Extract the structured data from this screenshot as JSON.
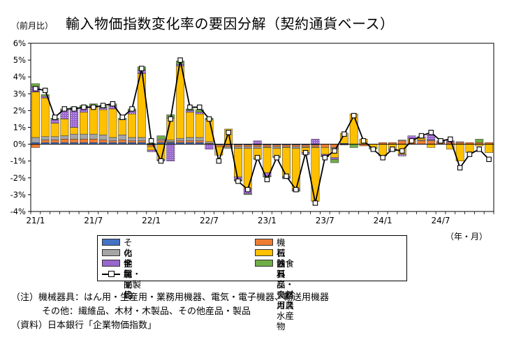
{
  "header": {
    "unit": "（前月比）",
    "title": "輸入物価指数変化率の要因分解（契約通貨ベース）"
  },
  "chart_data": {
    "type": "bar",
    "stacked": true,
    "x_axis_unit": "（年・月）",
    "ylim": [
      -4,
      6
    ],
    "yticks": [
      "-4%",
      "-3%",
      "-2%",
      "-1%",
      "0%",
      "1%",
      "2%",
      "3%",
      "4%",
      "5%",
      "6%"
    ],
    "grid": false,
    "x_tick_labels": [
      {
        "index": 0,
        "label": "21/1"
      },
      {
        "index": 6,
        "label": "21/7"
      },
      {
        "index": 12,
        "label": "22/1"
      },
      {
        "index": 18,
        "label": "22/7"
      },
      {
        "index": 24,
        "label": "23/1"
      },
      {
        "index": 30,
        "label": "23/7"
      },
      {
        "index": 36,
        "label": "24/1"
      },
      {
        "index": 42,
        "label": "24/7"
      }
    ],
    "categories": [
      "21/1",
      "21/2",
      "21/3",
      "21/4",
      "21/5",
      "21/6",
      "21/7",
      "21/8",
      "21/9",
      "21/10",
      "21/11",
      "21/12",
      "22/1",
      "22/2",
      "22/3",
      "22/4",
      "22/5",
      "22/6",
      "22/7",
      "22/8",
      "22/9",
      "22/10",
      "22/11",
      "22/12",
      "23/1",
      "23/2",
      "23/3",
      "23/4",
      "23/5",
      "23/6",
      "23/7",
      "23/8",
      "23/9",
      "23/10",
      "23/11",
      "23/12",
      "24/1",
      "24/2",
      "24/3",
      "24/4",
      "24/5",
      "24/6",
      "24/7",
      "24/8",
      "24/9",
      "24/10",
      "24/11",
      "24/12"
    ],
    "series": [
      {
        "name": "その他",
        "color": "#4472C4",
        "values": [
          0.1,
          0.1,
          0.1,
          0.1,
          0.1,
          0.1,
          0.1,
          0.1,
          0.1,
          0.1,
          0.1,
          0.1,
          -0.05,
          0.1,
          0.1,
          0.1,
          0.1,
          0.1,
          0.0,
          -0.05,
          -0.05,
          -0.05,
          -0.05,
          -0.05,
          -0.05,
          -0.05,
          -0.05,
          -0.05,
          -0.05,
          -0.05,
          0.0,
          0.0,
          0.05,
          0.0,
          0.0,
          0.0,
          0.0,
          0.0,
          0.0,
          0.0,
          0.0,
          0.0,
          0.0,
          0.0,
          0.0,
          0.0,
          0.0,
          0.0
        ]
      },
      {
        "name": "機械器具",
        "color": "#ED7D31",
        "values": [
          -0.2,
          0.15,
          0.15,
          0.2,
          0.2,
          0.2,
          0.2,
          0.15,
          0.1,
          0.15,
          0.1,
          0.1,
          -0.1,
          0.1,
          0.05,
          0.1,
          0.1,
          0.1,
          0.05,
          -0.1,
          -0.1,
          -0.1,
          -0.1,
          -0.1,
          -0.1,
          -0.1,
          -0.1,
          -0.1,
          -0.1,
          -0.1,
          -0.2,
          -0.2,
          0.0,
          0.0,
          -0.1,
          0.0,
          0.1,
          0.1,
          0.2,
          0.2,
          0.2,
          0.2,
          0.1,
          0.1,
          0.1,
          0.1,
          0.1,
          0.1
        ]
      },
      {
        "name": "化学製品",
        "color": "#A5A5A5",
        "values": [
          0.3,
          0.2,
          0.2,
          0.2,
          0.3,
          0.3,
          0.3,
          0.3,
          0.2,
          0.3,
          0.2,
          0.2,
          0.0,
          0.1,
          0.1,
          0.15,
          0.2,
          0.2,
          0.1,
          0.0,
          -0.1,
          -0.1,
          -0.1,
          -0.1,
          -0.05,
          -0.1,
          -0.05,
          -0.1,
          -0.05,
          -0.05,
          0.0,
          -0.1,
          -0.05,
          0.0,
          0.0,
          0.0,
          0.0,
          0.0,
          0.05,
          0.0,
          0.05,
          0.05,
          0.0,
          0.0,
          0.05,
          0.0,
          0.0,
          0.0
        ]
      },
      {
        "name": "石油・石炭・天然ガス",
        "color": "#FFC000",
        "values": [
          2.7,
          2.3,
          0.8,
          1.0,
          0.4,
          1.3,
          1.6,
          1.5,
          1.7,
          0.9,
          1.4,
          3.8,
          -0.2,
          -0.9,
          1.3,
          4.3,
          1.5,
          1.4,
          1.3,
          -0.5,
          0.9,
          -1.7,
          -2.4,
          -0.6,
          -1.5,
          -0.5,
          -1.7,
          -2.4,
          -0.3,
          -3.2,
          -0.4,
          -0.5,
          0.6,
          1.8,
          0.3,
          -0.2,
          -0.7,
          -0.3,
          -0.6,
          0.1,
          0.1,
          -0.2,
          0.0,
          -0.3,
          -1.0,
          -0.5,
          -0.1,
          -0.5
        ]
      },
      {
        "name": "金属・同製品",
        "color": "#9966CC",
        "values": [
          0.3,
          0.1,
          0.2,
          0.5,
          1.1,
          0.3,
          0.1,
          0.1,
          0.2,
          0.0,
          0.2,
          0.2,
          -0.1,
          -0.1,
          -1.0,
          0.1,
          0.1,
          0.1,
          -0.3,
          0.0,
          0.0,
          -0.2,
          -0.3,
          0.2,
          -0.2,
          0.0,
          -0.1,
          -0.1,
          -0.1,
          0.3,
          -0.1,
          -0.1,
          0.0,
          0.0,
          0.0,
          0.0,
          0.0,
          -0.1,
          -0.1,
          0.2,
          0.1,
          0.3,
          0.1,
          0.1,
          0.0,
          0.0,
          0.0,
          0.0
        ]
      },
      {
        "name": "飲食料品・食料用農水産物",
        "color": "#70AD47",
        "values": [
          0.2,
          0.1,
          0.1,
          0.1,
          0.1,
          0.1,
          0.1,
          0.1,
          0.1,
          0.1,
          0.1,
          0.2,
          0.05,
          0.2,
          0.2,
          0.2,
          0.1,
          0.15,
          0.1,
          0.0,
          0.0,
          -0.05,
          -0.05,
          -0.05,
          -0.05,
          -0.05,
          -0.05,
          -0.05,
          0.0,
          0.0,
          -0.05,
          -0.2,
          0.0,
          -0.2,
          0.0,
          -0.1,
          0.0,
          0.0,
          0.0,
          0.0,
          0.0,
          0.0,
          0.0,
          0.0,
          0.0,
          0.0,
          0.2,
          0.0
        ]
      }
    ],
    "total": {
      "name": "総平均",
      "values": [
        3.3,
        3.2,
        1.6,
        2.1,
        2.1,
        2.2,
        2.2,
        2.3,
        2.4,
        1.6,
        2.1,
        4.5,
        0.2,
        -1.0,
        1.5,
        5.0,
        2.2,
        2.2,
        1.5,
        -1.0,
        0.7,
        -2.2,
        -2.7,
        -0.8,
        -2.1,
        -0.8,
        -1.9,
        -2.7,
        -0.5,
        -3.5,
        -0.8,
        -0.4,
        0.6,
        1.7,
        0.2,
        -0.3,
        -0.8,
        -0.3,
        -0.4,
        0.2,
        0.5,
        0.7,
        0.2,
        0.3,
        -1.4,
        -0.6,
        -0.3,
        -0.9
      ]
    }
  },
  "legend": {
    "items": [
      {
        "label": "その他",
        "color": "#4472C4"
      },
      {
        "label": "機械器具",
        "color": "#ED7D31"
      },
      {
        "label": "化学製品",
        "color": "#A5A5A5"
      },
      {
        "label": "石油・石炭・天然ガス",
        "color": "#FFC000"
      },
      {
        "label": "金属・同製品",
        "color": "#9966CC"
      },
      {
        "label": "飲食料品・食料用農水産物",
        "color": "#70AD47"
      }
    ],
    "total_label": "総平均"
  },
  "notes": {
    "line1": "（注）機械器具：はん用・生産用・業務用機器、電気・電子機器、輸送用機器",
    "line2": "その他：繊維品、木材・木製品、その他産品・製品",
    "line3": "（資料）日本銀行「企業物価指数」"
  }
}
